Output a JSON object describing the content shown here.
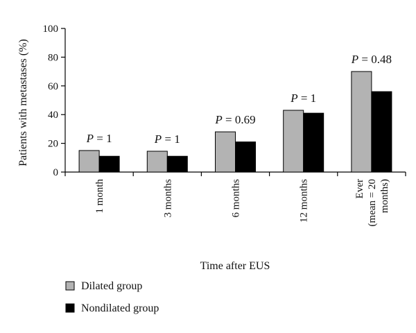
{
  "chart_data": {
    "type": "bar",
    "categories": [
      [
        "1 month"
      ],
      [
        "3 months"
      ],
      [
        "6 months"
      ],
      [
        "12 months"
      ],
      [
        "Ever",
        "(mean = 20",
        "months)"
      ]
    ],
    "series": [
      {
        "name": "Dilated group",
        "color": "#b3b3b3",
        "values": [
          15,
          14.5,
          28,
          43,
          70
        ]
      },
      {
        "name": "Nondilated group",
        "color": "#000000",
        "values": [
          11,
          11,
          21,
          41,
          56
        ]
      }
    ],
    "annotations": [
      {
        "p_label": "P",
        "text": " = 1"
      },
      {
        "p_label": "P",
        "text": " = 1"
      },
      {
        "p_label": "P",
        "text": " = 0.69"
      },
      {
        "p_label": "P",
        "text": " = 1"
      },
      {
        "p_label": "P",
        "text": " = 0.48"
      }
    ],
    "xlabel": "Time after EUS",
    "ylabel": "Patients with metastases (%)",
    "ylim": [
      0,
      100
    ],
    "yticks": [
      0,
      20,
      40,
      60,
      80,
      100
    ],
    "grid": false,
    "legend_position": "bottom-left"
  }
}
